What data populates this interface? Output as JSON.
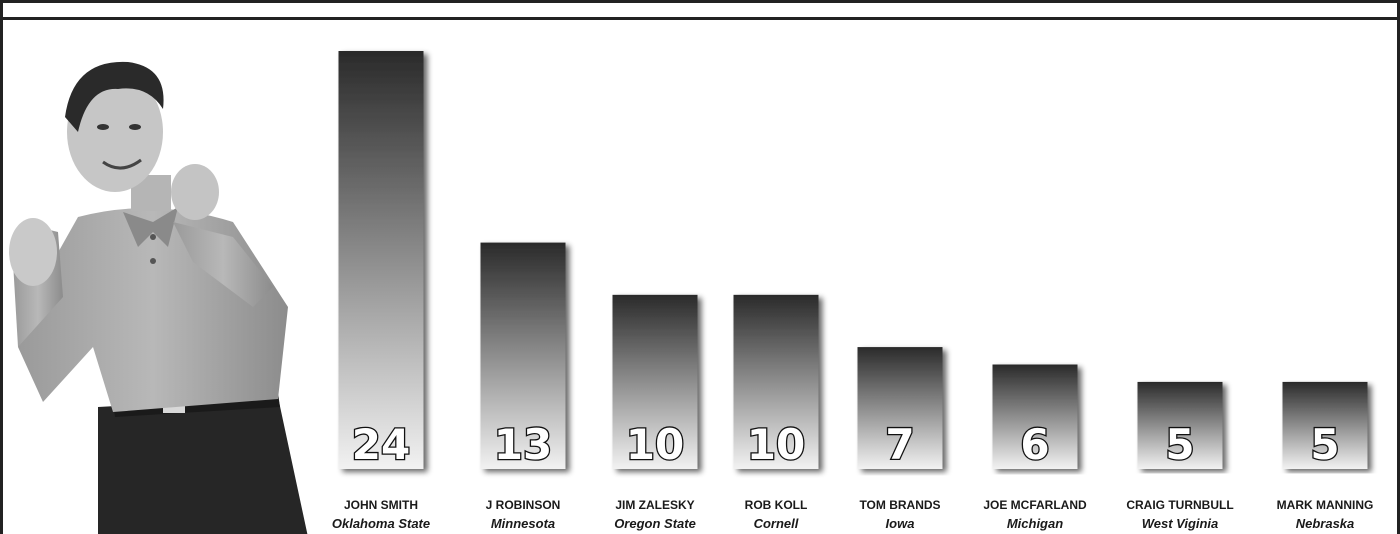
{
  "chart_data": {
    "type": "bar",
    "categories": [
      "JOHN SMITH",
      "J ROBINSON",
      "JIM ZALESKY",
      "ROB KOLL",
      "TOM BRANDS",
      "JOE MCFARLAND",
      "CRAIG TURNBULL",
      "MARK MANNING"
    ],
    "teams": [
      "Oklahoma State",
      "Minnesota",
      "Oregon State",
      "Cornell",
      "Iowa",
      "Michigan",
      "West Viginia",
      "Nebraska"
    ],
    "values": [
      24,
      13,
      10,
      10,
      7,
      6,
      5,
      5
    ],
    "ylim": [
      0,
      24
    ],
    "grid": false,
    "legend": "none",
    "colors": {
      "bar_top": "#2a2a2a",
      "bar_bottom": "#f2f2f2",
      "text": "#1a1a1a",
      "frame": "#222222"
    }
  },
  "photo": {
    "icon": "coach-photo"
  }
}
